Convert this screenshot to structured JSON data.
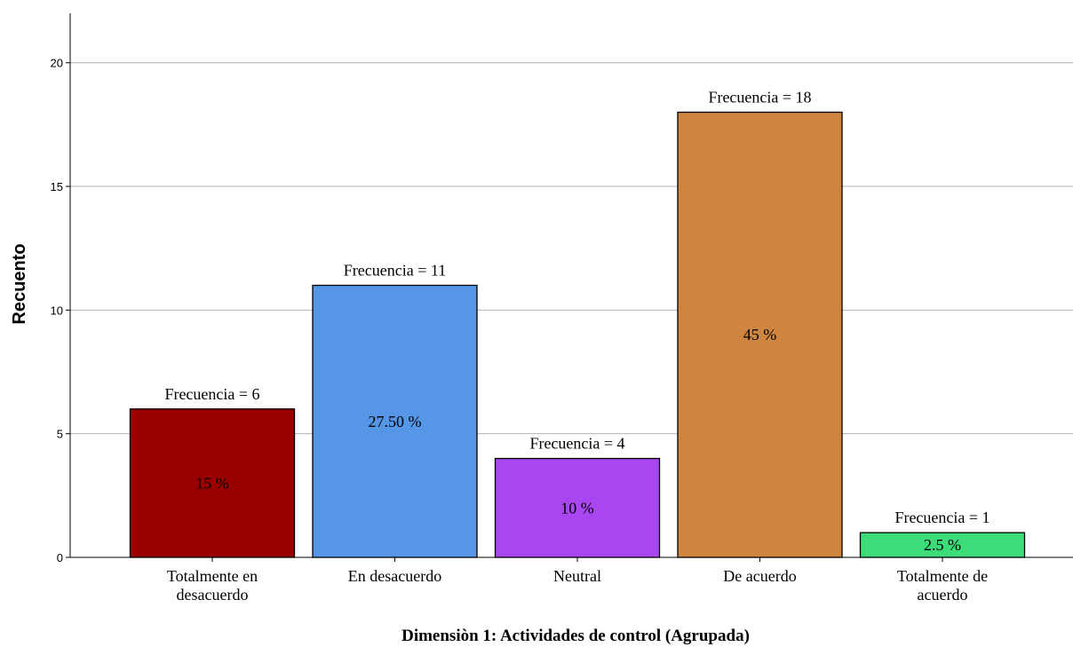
{
  "chart_data": {
    "type": "bar",
    "xlabel": "Dimensiòn 1: Actividades de control (Agrupada)",
    "ylabel": "Recuento",
    "ylim": [
      0,
      22
    ],
    "yticks": [
      0,
      5,
      10,
      15,
      20
    ],
    "grid": true,
    "categories": [
      [
        "Totalmente en",
        "desacuerdo"
      ],
      [
        "En desacuerdo"
      ],
      [
        "Neutral"
      ],
      [
        "De acuerdo"
      ],
      [
        "Totalmente de",
        "acuerdo"
      ]
    ],
    "values": [
      6,
      11,
      4,
      18,
      1
    ],
    "count_labels": [
      "Frecuencia = 6",
      "Frecuencia = 11",
      "Frecuencia = 4",
      "Frecuencia = 18",
      "Frecuencia = 1"
    ],
    "percent_labels": [
      "15 %",
      "27.50 %",
      "10 %",
      "45 %",
      "2.5 %"
    ],
    "colors": [
      "#990000",
      "#5596e6",
      "#a846f0",
      "#cd853f",
      "#3cdc78"
    ]
  }
}
